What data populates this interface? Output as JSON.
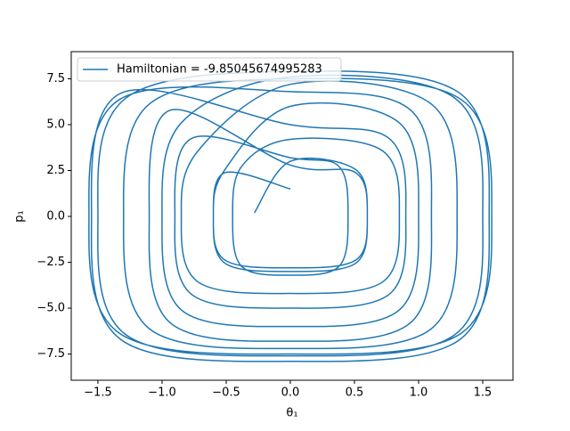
{
  "chart_data": {
    "type": "line",
    "x_label": "θ₁",
    "y_label": "p₁",
    "legend_location": "upper left",
    "xlim": [
      -1.708,
      1.736
    ],
    "ylim": [
      -8.93,
      8.98
    ],
    "xticks": [
      {
        "value": -1.5,
        "label": "−1.5"
      },
      {
        "value": -1.0,
        "label": "−1.0"
      },
      {
        "value": -0.5,
        "label": "−0.5"
      },
      {
        "value": 0,
        "label": "0.0"
      },
      {
        "value": 0.5,
        "label": "0.5"
      },
      {
        "value": 1.0,
        "label": "1.0"
      },
      {
        "value": 1.5,
        "label": "1.5"
      }
    ],
    "yticks": [
      {
        "value": -7.5,
        "label": "−7.5"
      },
      {
        "value": -5.0,
        "label": "−5.0"
      },
      {
        "value": -2.5,
        "label": "−2.5"
      },
      {
        "value": 0,
        "label": "0.0"
      },
      {
        "value": 2.5,
        "label": "2.5"
      },
      {
        "value": 5.0,
        "label": "5.0"
      },
      {
        "value": 7.5,
        "label": "7.5"
      }
    ],
    "series": [
      {
        "name": "Hamiltonian = -9.85045674995283",
        "color": "#1f77b4",
        "x": [
          -0.28,
          0,
          0.51,
          0.6,
          0.51,
          0,
          -0.51,
          -0.6,
          -0.51,
          0,
          0.85,
          1.0,
          0.85,
          0,
          -0.85,
          -1.0,
          -0.85,
          0,
          1.28,
          1.5,
          1.28,
          0,
          -1.28,
          -1.5,
          -1.28,
          0,
          1.32,
          1.55,
          1.32,
          0,
          -1.32,
          -1.55,
          -1.32,
          0,
          0.77,
          0.9,
          0.77,
          0,
          -0.77,
          -0.9,
          -0.77,
          0,
          0.38,
          0.45,
          0.38,
          0,
          -0.38,
          -0.45,
          -0.38,
          0,
          0.72,
          0.85,
          0.72,
          0,
          -0.72,
          -0.85,
          -0.72,
          0,
          1.1,
          1.3,
          1.1,
          0,
          -1.1,
          -1.3,
          -1.1,
          0,
          1.33,
          1.57,
          1.33,
          0,
          -1.33,
          -1.57,
          -1.33,
          0,
          0.94,
          1.1,
          0.94,
          0,
          -0.94,
          -1.1,
          -0.94,
          0,
          0.51,
          0.6,
          0.51,
          0,
          -0.51,
          -0.6,
          -0.51,
          0
        ],
        "values": [
          0.2,
          3,
          2.55,
          0,
          -2.55,
          -3,
          -2.55,
          0,
          2.55,
          6,
          5.1,
          0,
          -5.1,
          -6,
          -5.1,
          0,
          5.1,
          7.6,
          6.46,
          0,
          -6.46,
          -7.6,
          -6.46,
          0,
          6.46,
          7.9,
          6.72,
          0,
          -6.72,
          -7.9,
          -6.72,
          0,
          6.72,
          5,
          4.25,
          0,
          -4.25,
          -5,
          -4.25,
          0,
          4.25,
          3.2,
          2.72,
          0,
          -2.72,
          -3.2,
          -2.72,
          0,
          2.72,
          4.2,
          3.57,
          0,
          -3.57,
          -4.2,
          -3.57,
          0,
          3.57,
          7.2,
          6.12,
          0,
          -6.12,
          -7.2,
          -6.12,
          0,
          6.12,
          7.5,
          6.38,
          0,
          -6.38,
          -7.5,
          -6.38,
          0,
          6.38,
          6.8,
          5.78,
          0,
          -5.78,
          -6.8,
          -5.78,
          0,
          5.78,
          2.8,
          2.38,
          0,
          -2.38,
          -2.8,
          -2.38,
          0,
          2.38,
          1.5
        ]
      }
    ]
  }
}
